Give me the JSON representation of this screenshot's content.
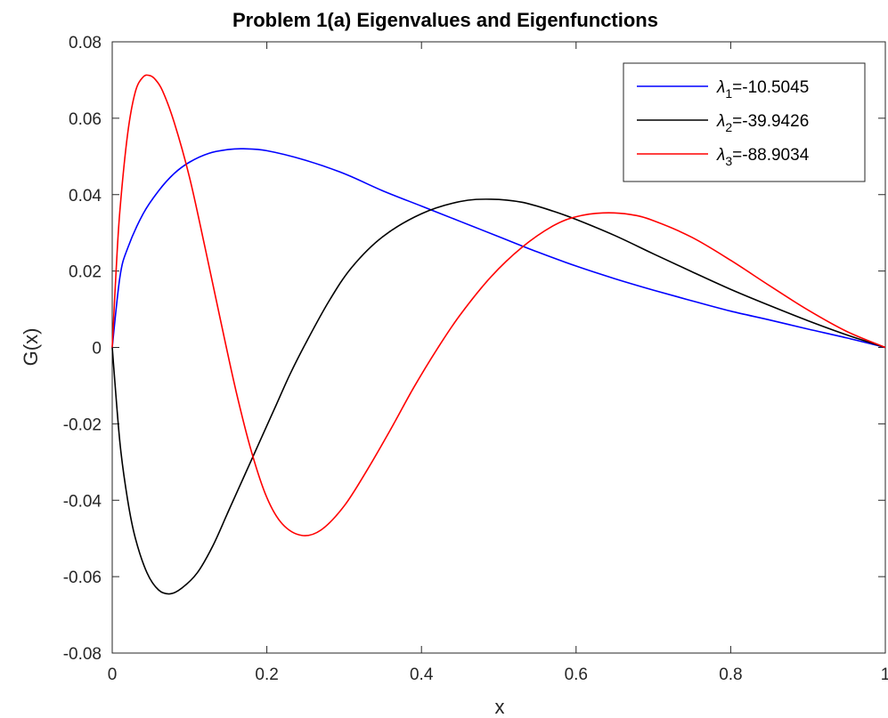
{
  "chart_data": {
    "type": "line",
    "title": "Problem 1(a) Eigenvalues and Eigenfunctions",
    "xlabel": "x",
    "ylabel": "G(x)",
    "xlim": [
      0,
      1
    ],
    "ylim": [
      -0.08,
      0.08
    ],
    "xticks": [
      "0",
      "0.2",
      "0.4",
      "0.6",
      "0.8",
      "1"
    ],
    "yticks": [
      "-0.08",
      "-0.06",
      "-0.04",
      "-0.02",
      "0",
      "0.02",
      "0.04",
      "0.06",
      "0.08"
    ],
    "grid": false,
    "legend_position": "top-right",
    "series": [
      {
        "name_symbol": "λ",
        "name_sub": "1",
        "name_value": "=-10.5045",
        "color": "#0000ff",
        "points": [
          [
            0,
            0
          ],
          [
            0.01,
            0.0185
          ],
          [
            0.02,
            0.026
          ],
          [
            0.04,
            0.035
          ],
          [
            0.06,
            0.041
          ],
          [
            0.08,
            0.0455
          ],
          [
            0.1,
            0.0485
          ],
          [
            0.125,
            0.0508
          ],
          [
            0.15,
            0.0518
          ],
          [
            0.17,
            0.052
          ],
          [
            0.2,
            0.0515
          ],
          [
            0.25,
            0.049
          ],
          [
            0.3,
            0.0455
          ],
          [
            0.35,
            0.041
          ],
          [
            0.4,
            0.037
          ],
          [
            0.45,
            0.033
          ],
          [
            0.5,
            0.029
          ],
          [
            0.55,
            0.025
          ],
          [
            0.6,
            0.0213
          ],
          [
            0.65,
            0.018
          ],
          [
            0.7,
            0.015
          ],
          [
            0.75,
            0.0122
          ],
          [
            0.8,
            0.0095
          ],
          [
            0.85,
            0.0072
          ],
          [
            0.9,
            0.0048
          ],
          [
            0.95,
            0.0025
          ],
          [
            1,
            0
          ]
        ]
      },
      {
        "name_symbol": "λ",
        "name_sub": "2",
        "name_value": "=-39.9426",
        "color": "#000000",
        "points": [
          [
            0,
            0
          ],
          [
            0.01,
            -0.025
          ],
          [
            0.02,
            -0.04
          ],
          [
            0.03,
            -0.05
          ],
          [
            0.045,
            -0.059
          ],
          [
            0.06,
            -0.0635
          ],
          [
            0.075,
            -0.0645
          ],
          [
            0.09,
            -0.063
          ],
          [
            0.11,
            -0.059
          ],
          [
            0.13,
            -0.052
          ],
          [
            0.15,
            -0.043
          ],
          [
            0.17,
            -0.034
          ],
          [
            0.19,
            -0.025
          ],
          [
            0.21,
            -0.016
          ],
          [
            0.23,
            -0.007
          ],
          [
            0.25,
            0.001
          ],
          [
            0.28,
            0.012
          ],
          [
            0.31,
            0.021
          ],
          [
            0.35,
            0.029
          ],
          [
            0.4,
            0.035
          ],
          [
            0.45,
            0.0382
          ],
          [
            0.49,
            0.0388
          ],
          [
            0.53,
            0.038
          ],
          [
            0.57,
            0.0357
          ],
          [
            0.6,
            0.0335
          ],
          [
            0.65,
            0.0293
          ],
          [
            0.7,
            0.0245
          ],
          [
            0.75,
            0.0198
          ],
          [
            0.8,
            0.0152
          ],
          [
            0.85,
            0.011
          ],
          [
            0.9,
            0.007
          ],
          [
            0.95,
            0.0033
          ],
          [
            1,
            0
          ]
        ]
      },
      {
        "name_symbol": "λ",
        "name_sub": "3",
        "name_value": "=-88.9034",
        "color": "#ff0000",
        "points": [
          [
            0,
            0
          ],
          [
            0.005,
            0.02
          ],
          [
            0.01,
            0.036
          ],
          [
            0.02,
            0.056
          ],
          [
            0.03,
            0.067
          ],
          [
            0.04,
            0.0708
          ],
          [
            0.048,
            0.0712
          ],
          [
            0.055,
            0.0703
          ],
          [
            0.065,
            0.0672
          ],
          [
            0.08,
            0.059
          ],
          [
            0.1,
            0.0445
          ],
          [
            0.12,
            0.0262
          ],
          [
            0.14,
            0.0072
          ],
          [
            0.16,
            -0.0113
          ],
          [
            0.18,
            -0.0272
          ],
          [
            0.2,
            -0.0393
          ],
          [
            0.22,
            -0.0462
          ],
          [
            0.245,
            -0.0492
          ],
          [
            0.27,
            -0.0478
          ],
          [
            0.3,
            -0.0415
          ],
          [
            0.33,
            -0.032
          ],
          [
            0.36,
            -0.0215
          ],
          [
            0.39,
            -0.0105
          ],
          [
            0.42,
            -0.0005
          ],
          [
            0.45,
            0.0085
          ],
          [
            0.49,
            0.0185
          ],
          [
            0.53,
            0.0262
          ],
          [
            0.57,
            0.0318
          ],
          [
            0.6,
            0.0342
          ],
          [
            0.635,
            0.0352
          ],
          [
            0.67,
            0.0348
          ],
          [
            0.7,
            0.0332
          ],
          [
            0.75,
            0.0288
          ],
          [
            0.8,
            0.0228
          ],
          [
            0.85,
            0.0162
          ],
          [
            0.9,
            0.0098
          ],
          [
            0.95,
            0.0042
          ],
          [
            1,
            0
          ]
        ]
      }
    ]
  }
}
